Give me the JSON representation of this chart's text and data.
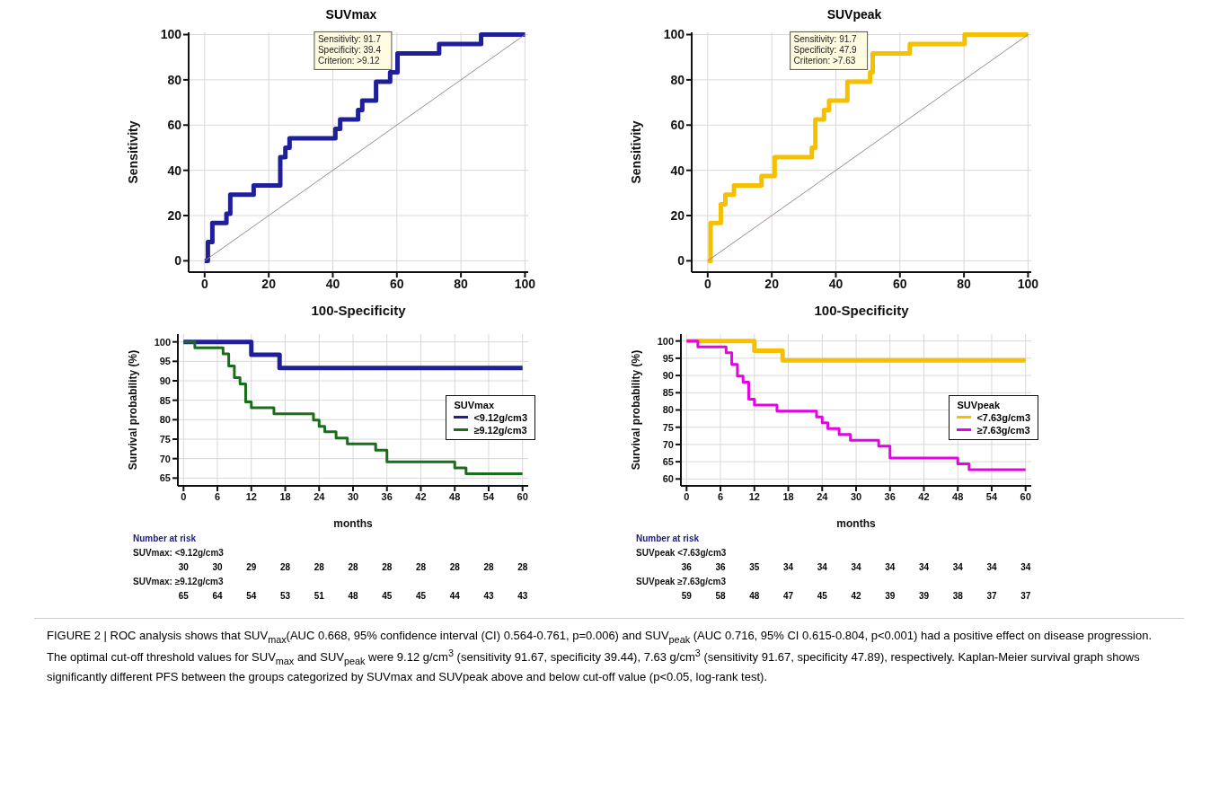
{
  "chart_data": [
    {
      "type": "step",
      "title": "SUVmax",
      "xlabel": "100-Specificity",
      "ylabel": "Sensitivity",
      "xlim": [
        -5,
        101
      ],
      "ylim": [
        -5,
        101
      ],
      "xticks": [
        0,
        20,
        40,
        60,
        80,
        100
      ],
      "yticks": [
        0,
        20,
        40,
        60,
        80,
        100
      ],
      "grid": true,
      "series": [
        {
          "type": "step",
          "color": "#1f1f99",
          "x": [
            0,
            1,
            2.4,
            6.8,
            8,
            15.3,
            23.6,
            25.2,
            26.5,
            40.8,
            42.3,
            47.9,
            49.2,
            53.5,
            57.9,
            60.2,
            73.2,
            86.3,
            100
          ],
          "values": [
            0,
            8.3,
            16.7,
            20.8,
            29.2,
            33.3,
            45.8,
            50,
            54.2,
            58.3,
            62.5,
            66.7,
            70.8,
            79.2,
            83.3,
            91.7,
            95.8,
            100,
            100
          ]
        },
        {
          "type": "line",
          "color": "#a08888",
          "x": [
            0,
            100
          ],
          "values": [
            0,
            100
          ]
        }
      ],
      "annotations": [
        {
          "text": "Sensitivity: 91.7\nSpecificity: 39.4\nCriterion: >9.12",
          "x": 60.6,
          "y": 91.7
        }
      ]
    },
    {
      "type": "step",
      "title": "SUVpeak",
      "xlabel": "100-Specificity",
      "ylabel": "Sensitivity",
      "xlim": [
        -5,
        101
      ],
      "ylim": [
        -5,
        101
      ],
      "xticks": [
        0,
        20,
        40,
        60,
        80,
        100
      ],
      "yticks": [
        0,
        20,
        40,
        60,
        80,
        100
      ],
      "grid": true,
      "series": [
        {
          "type": "step",
          "color": "#f5c000",
          "x": [
            0,
            0.9,
            4.1,
            5.5,
            8.2,
            16.8,
            20.9,
            32.5,
            33.6,
            36.3,
            37.9,
            43.6,
            50.7,
            51.5,
            63.1,
            80.2,
            100
          ],
          "values": [
            0,
            16.7,
            25,
            29.2,
            33.3,
            37.5,
            45.8,
            50,
            62.5,
            66.7,
            70.8,
            79.2,
            83.3,
            91.7,
            95.8,
            100,
            100
          ]
        },
        {
          "type": "line",
          "color": "#a08888",
          "x": [
            0,
            100
          ],
          "values": [
            0,
            100
          ]
        }
      ],
      "annotations": [
        {
          "text": "Sensitivity: 91.7\nSpecificity: 47.9\nCriterion: >7.63",
          "x": 52.1,
          "y": 91.7
        }
      ]
    },
    {
      "type": "step",
      "xlabel": "months",
      "ylabel": "Survival probability (%)",
      "xlim": [
        -1,
        61
      ],
      "ylim": [
        63,
        102
      ],
      "xticks": [
        0,
        6,
        12,
        18,
        24,
        30,
        36,
        42,
        48,
        54,
        60
      ],
      "yticks": [
        65,
        70,
        75,
        80,
        85,
        90,
        95,
        100
      ],
      "grid": true,
      "legend": "right",
      "legend_title": "SUVmax",
      "series": [
        {
          "name": "<9.12g/cm3",
          "color": "#1f1f99",
          "x": [
            0,
            12,
            17,
            60
          ],
          "values": [
            100,
            96.7,
            93.3,
            93.3
          ]
        },
        {
          "name": "≥9.12g/cm3",
          "color": "#1a6e1a",
          "x": [
            0,
            2,
            7,
            8,
            9,
            10,
            11,
            12,
            16,
            23,
            24,
            25,
            27,
            29,
            34,
            36,
            48,
            50,
            60
          ],
          "values": [
            100,
            98.5,
            96.9,
            93.8,
            90.8,
            89.2,
            84.6,
            83.1,
            81.5,
            79.9,
            78.3,
            76.9,
            75.3,
            73.8,
            72.2,
            69.2,
            67.6,
            66.1,
            66.1
          ]
        }
      ],
      "annotations": [
        "Number at risk",
        "SUVmax: <9.12g/cm3",
        "30 30 29 28 28 28 28 28 28 28 28",
        "SUVmax: ≥9.12g/cm3",
        "65 64 54 53 51 48 45 45 44 43 43"
      ]
    },
    {
      "type": "step",
      "xlabel": "months",
      "ylabel": "Survival probability (%)",
      "xlim": [
        -1,
        61
      ],
      "ylim": [
        58,
        102
      ],
      "xticks": [
        0,
        6,
        12,
        18,
        24,
        30,
        36,
        42,
        48,
        54,
        60
      ],
      "yticks": [
        60,
        65,
        70,
        75,
        80,
        85,
        90,
        95,
        100
      ],
      "grid": true,
      "legend": "right",
      "legend_title": "SUVpeak",
      "series": [
        {
          "name": "<7.63g/cm3",
          "color": "#f5c000",
          "x": [
            0,
            12,
            17,
            60
          ],
          "values": [
            100,
            97.2,
            94.4,
            94.4
          ]
        },
        {
          "name": "≥7.63g/cm3",
          "color": "#e800e8",
          "x": [
            0,
            2,
            7,
            8,
            9,
            10,
            11,
            12,
            16,
            23,
            24,
            25,
            27,
            29,
            34,
            36,
            48,
            50,
            60
          ],
          "values": [
            100,
            98.3,
            96.6,
            93.2,
            89.8,
            88.1,
            83.1,
            81.4,
            79.7,
            78,
            76.3,
            74.6,
            72.9,
            71.2,
            69.5,
            66.1,
            64.4,
            62.7,
            62.7
          ]
        }
      ],
      "annotations": [
        "Number at risk",
        "SUVpeak <7.63g/cm3",
        "36 36 35 34 34 34 34 34 34 34 34",
        "SUVpeak ≥7.63g/cm3",
        "59 58 48 47 45 42 39 39 38 37 37",
        "FIGURE 2 | ROC analysis shows that SUV$_{max}$(AUC 0.668, 95% confidence interval (CI) 0.564-0.761, p=0.006) and SUV$_{peak}$ (AUC 0.716, 95% CI 0.615-0.804, p<0.001) had a positive effect on disease progression. The optimal cut-off threshold values for SUV$_{max}$ and SUV$_{peak}$ were 9.12 g/cm$^{3}$ (sensitivity 91.67, specificity 39.44), 7.63 g/cm$^{3}$ (sensitivity 91.67, specificity 47.89), respectively. Kaplan-Meier survival graph shows significantly different PFS between the groups categorized by SUVmax and SUVpeak above and below cut-off value (p<0.05, log-rank test)."
      ]
    }
  ]
}
